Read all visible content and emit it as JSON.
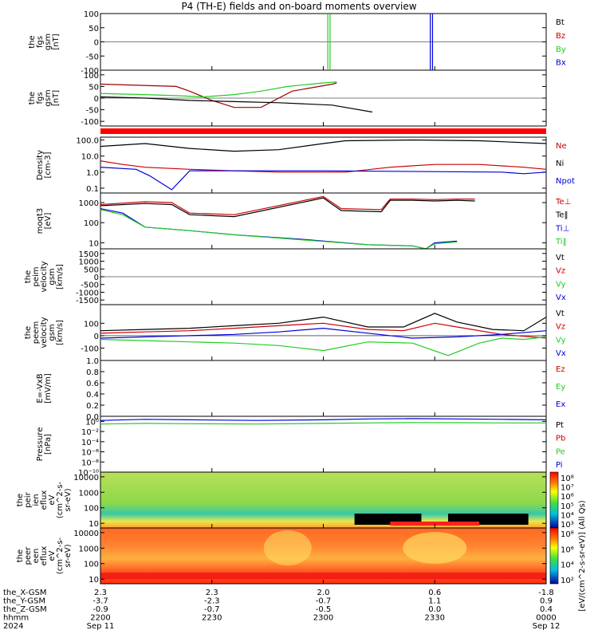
{
  "title": "P4 (TH-E) fields and on-board moments overview",
  "colors": {
    "black": "#000000",
    "red": "#cc0000",
    "green": "#22cc22",
    "blue": "#0000dd",
    "darkred": "#990000",
    "band_red": "#ff0000"
  },
  "chart_data": [
    {
      "type": "line",
      "ylabel": [
        "the",
        "fgs",
        "gsm",
        "[nT]"
      ],
      "ylim": [
        -100,
        100
      ],
      "yticks": [
        "100",
        "50",
        "0",
        "-50",
        "-100"
      ],
      "yvals": [
        100,
        50,
        0,
        -50,
        -100
      ],
      "legend": [
        {
          "name": "Bt",
          "color": "#000000"
        },
        {
          "name": "Bz",
          "color": "#cc0000"
        },
        {
          "name": "By",
          "color": "#22cc22"
        },
        {
          "name": "Bx",
          "color": "#0000dd"
        }
      ]
    },
    {
      "type": "line",
      "ylabel": [
        "the",
        "fgs",
        "gsm",
        "[nT]"
      ],
      "ylim": [
        -120,
        120
      ],
      "yticks": [
        "100",
        "50",
        "0",
        "-50",
        "-100"
      ],
      "yvals": [
        100,
        50,
        0,
        -50,
        -100
      ],
      "series": [
        {
          "name": "Bz",
          "color": "#990000",
          "x": [
            0,
            0.09,
            0.17,
            0.2,
            0.25,
            0.3,
            0.36,
            0.43,
            0.52,
            0.53
          ],
          "y": [
            60,
            55,
            50,
            30,
            -10,
            -40,
            -40,
            30,
            60,
            65
          ]
        },
        {
          "name": "By",
          "color": "#22cc22",
          "x": [
            0,
            0.1,
            0.18,
            0.23,
            0.3,
            0.36,
            0.42,
            0.5,
            0.53
          ],
          "y": [
            20,
            15,
            10,
            5,
            15,
            30,
            50,
            65,
            70
          ]
        },
        {
          "name": "Bt",
          "color": "#000000",
          "x": [
            0,
            0.1,
            0.2,
            0.3,
            0.4,
            0.46,
            0.52,
            0.61
          ],
          "y": [
            5,
            0,
            -10,
            -15,
            -20,
            -25,
            -30,
            -60
          ]
        }
      ]
    },
    {
      "type": "line",
      "ylabel": [
        "Density",
        "[cm-3]"
      ],
      "ylim": [
        0.05,
        150
      ],
      "yticks": [
        "100.0",
        "10.0",
        "1.0",
        "0.1"
      ],
      "yvals": [
        100,
        10,
        1,
        0.1
      ],
      "log": true,
      "legend": [
        {
          "name": "Ne",
          "color": "#cc0000"
        },
        {
          "name": "Ni",
          "color": "#000000"
        },
        {
          "name": "Npot",
          "color": "#0000dd"
        }
      ],
      "series": [
        {
          "name": "Ni",
          "color": "#000000",
          "x": [
            0,
            0.1,
            0.2,
            0.3,
            0.4,
            0.5,
            0.55,
            0.7,
            0.85,
            1.0
          ],
          "y": [
            40,
            60,
            30,
            20,
            25,
            60,
            90,
            100,
            90,
            60
          ]
        },
        {
          "name": "Ne",
          "color": "#cc0000",
          "x": [
            0,
            0.05,
            0.1,
            0.2,
            0.3,
            0.4,
            0.55,
            0.65,
            0.75,
            0.85,
            0.95,
            1.0
          ],
          "y": [
            5,
            3,
            2,
            1.5,
            1.2,
            1.0,
            1.0,
            2,
            3,
            3,
            2,
            1.5
          ]
        },
        {
          "name": "Npot",
          "color": "#0000dd",
          "x": [
            0,
            0.08,
            0.11,
            0.16,
            0.2,
            0.4,
            0.5,
            0.9,
            0.95,
            1.0
          ],
          "y": [
            2,
            1.5,
            0.6,
            0.08,
            1.2,
            1.2,
            1.2,
            1.0,
            0.8,
            1.0
          ]
        }
      ]
    },
    {
      "type": "line",
      "ylabel": [
        "moqt3",
        "[eV]"
      ],
      "ylim": [
        5,
        3000
      ],
      "yticks": [
        "1000",
        "100",
        "10"
      ],
      "yvals": [
        1000,
        100,
        10
      ],
      "log": true,
      "legend": [
        {
          "name": "Te⊥",
          "color": "#cc0000"
        },
        {
          "name": "Te‖",
          "color": "#000000"
        },
        {
          "name": "Ti⊥",
          "color": "#0000dd"
        },
        {
          "name": "Ti‖",
          "color": "#22cc22"
        }
      ],
      "series": [
        {
          "name": "Te⊥",
          "color": "#cc0000",
          "x": [
            0,
            0.1,
            0.16,
            0.2,
            0.3,
            0.5,
            0.54,
            0.63,
            0.65,
            0.7,
            0.75,
            0.8,
            0.84
          ],
          "y": [
            800,
            1100,
            1000,
            300,
            250,
            2000,
            500,
            450,
            1500,
            1500,
            1400,
            1500,
            1500
          ]
        },
        {
          "name": "Te‖",
          "color": "#000000",
          "x": [
            0,
            0.1,
            0.16,
            0.2,
            0.3,
            0.5,
            0.54,
            0.63,
            0.65,
            0.7,
            0.75,
            0.8,
            0.84
          ],
          "y": [
            700,
            900,
            800,
            250,
            200,
            1700,
            400,
            350,
            1300,
            1300,
            1200,
            1300,
            1200
          ]
        },
        {
          "name": "Ti⊥",
          "color": "#0000dd",
          "x": [
            0,
            0.05,
            0.1,
            0.2,
            0.3,
            0.45,
            0.6,
            0.7,
            0.73,
            0.75,
            0.8
          ],
          "y": [
            500,
            300,
            60,
            40,
            25,
            15,
            8,
            7,
            5,
            10,
            12
          ]
        },
        {
          "name": "Ti‖",
          "color": "#22cc22",
          "x": [
            0,
            0.05,
            0.1,
            0.2,
            0.3,
            0.45,
            0.6,
            0.7,
            0.73,
            0.75,
            0.8
          ],
          "y": [
            450,
            250,
            60,
            40,
            25,
            14,
            8,
            7,
            5,
            9,
            11
          ]
        }
      ]
    },
    {
      "type": "line",
      "ylabel": [
        "the",
        "peim",
        "velocity",
        "gsm",
        "[km/s]"
      ],
      "ylim": [
        -1800,
        1800
      ],
      "yticks": [
        "1500",
        "1000",
        "500",
        "0",
        "-500",
        "-1000",
        "-1500"
      ],
      "yvals": [
        1500,
        1000,
        500,
        0,
        -500,
        -1000,
        -1500
      ],
      "legend": [
        {
          "name": "Vt",
          "color": "#000000"
        },
        {
          "name": "Vz",
          "color": "#cc0000"
        },
        {
          "name": "Vy",
          "color": "#22cc22"
        },
        {
          "name": "Vx",
          "color": "#0000dd"
        }
      ]
    },
    {
      "type": "line",
      "ylabel": [
        "the",
        "peem",
        "velocity",
        "gsm",
        "[km/s]"
      ],
      "ylim": [
        -200,
        250
      ],
      "yticks": [
        "100",
        "0",
        "-100"
      ],
      "yvals": [
        100,
        0,
        -100
      ],
      "legend": [
        {
          "name": "Vt",
          "color": "#000000"
        },
        {
          "name": "Vz",
          "color": "#cc0000"
        },
        {
          "name": "Vy",
          "color": "#22cc22"
        },
        {
          "name": "Vx",
          "color": "#0000dd"
        }
      ],
      "series": [
        {
          "name": "Vt",
          "color": "#000000",
          "x": [
            0,
            0.1,
            0.2,
            0.3,
            0.4,
            0.5,
            0.6,
            0.68,
            0.75,
            0.8,
            0.88,
            0.95,
            1.0
          ],
          "y": [
            40,
            50,
            60,
            80,
            100,
            150,
            70,
            70,
            180,
            110,
            50,
            40,
            150
          ]
        },
        {
          "name": "Vz",
          "color": "#cc0000",
          "x": [
            0,
            0.1,
            0.2,
            0.3,
            0.4,
            0.5,
            0.6,
            0.68,
            0.75,
            0.8,
            0.9,
            1.0
          ],
          "y": [
            20,
            30,
            40,
            60,
            80,
            100,
            50,
            40,
            100,
            70,
            10,
            -20
          ]
        },
        {
          "name": "Vx",
          "color": "#0000dd",
          "x": [
            0,
            0.1,
            0.2,
            0.3,
            0.4,
            0.5,
            0.6,
            0.7,
            0.8,
            0.9,
            1.0
          ],
          "y": [
            -20,
            -10,
            0,
            10,
            30,
            60,
            20,
            -20,
            -10,
            10,
            40
          ]
        },
        {
          "name": "Vy",
          "color": "#22cc22",
          "x": [
            0,
            0.1,
            0.2,
            0.3,
            0.4,
            0.5,
            0.6,
            0.7,
            0.78,
            0.85,
            0.9,
            0.95,
            1.0
          ],
          "y": [
            -30,
            -40,
            -50,
            -60,
            -80,
            -120,
            -50,
            -60,
            -160,
            -60,
            -20,
            -30,
            -10
          ]
        }
      ]
    },
    {
      "type": "line",
      "ylabel": [
        "E=-VxB",
        "[mV/m]"
      ],
      "ylim": [
        0,
        1.0
      ],
      "yticks": [
        "1.0",
        "0.8",
        "0.6",
        "0.4",
        "0.2",
        "0.0"
      ],
      "yvals": [
        1.0,
        0.8,
        0.6,
        0.4,
        0.2,
        0.0
      ],
      "legend": [
        {
          "name": "Ez",
          "color": "#cc0000"
        },
        {
          "name": "Ey",
          "color": "#22cc22"
        },
        {
          "name": "Ex",
          "color": "#0000dd"
        }
      ]
    },
    {
      "type": "line",
      "ylabel": [
        "Pressure",
        "[nPa]"
      ],
      "ylim": [
        1e-10,
        10
      ],
      "yticks": [
        "10⁰",
        "10⁻²",
        "10⁻⁴",
        "10⁻⁶",
        "10⁻⁸",
        "10⁻¹⁰"
      ],
      "yvals": [
        1,
        0.01,
        0.0001,
        1e-06,
        1e-08,
        1e-10
      ],
      "log": true,
      "legend": [
        {
          "name": "Pt",
          "color": "#000000"
        },
        {
          "name": "Pb",
          "color": "#cc0000"
        },
        {
          "name": "Pe",
          "color": "#22cc22"
        },
        {
          "name": "Pi",
          "color": "#0000dd"
        }
      ],
      "series": [
        {
          "name": "Pi",
          "color": "#0000dd",
          "x": [
            0,
            0.1,
            0.2,
            0.35,
            0.5,
            0.6,
            0.7,
            0.8,
            0.9,
            1.0
          ],
          "y": [
            1.5,
            2.5,
            2,
            1.5,
            2,
            3,
            3.5,
            3,
            2.5,
            2
          ]
        },
        {
          "name": "Pe",
          "color": "#22cc22",
          "x": [
            0,
            0.1,
            0.2,
            0.35,
            0.5,
            0.6,
            0.7,
            0.8,
            0.9,
            1.0
          ],
          "y": [
            0.3,
            0.4,
            0.35,
            0.3,
            0.4,
            0.5,
            0.6,
            0.55,
            0.5,
            0.5
          ]
        }
      ]
    },
    {
      "type": "heatmap",
      "ylabel": [
        "the",
        "peir",
        "ien",
        "eflux",
        "eV",
        "(cm^2-s-",
        "sr-eV)"
      ],
      "yticks": [
        "10000",
        "1000",
        "100",
        "10"
      ],
      "yvals": [
        10000,
        1000,
        100,
        10
      ],
      "ylim": [
        5,
        20000
      ],
      "log": true,
      "colorbar_ticks": [
        "10⁸",
        "10⁷",
        "10⁶",
        "10⁵",
        "10⁴",
        "10³"
      ]
    },
    {
      "type": "heatmap",
      "ylabel": [
        "the",
        "peer",
        "een",
        "eflux",
        "eV",
        "(cm^2-s-",
        "sr-eV)"
      ],
      "yticks": [
        "10000",
        "1000",
        "100",
        "10"
      ],
      "yvals": [
        10000,
        1000,
        100,
        10
      ],
      "ylim": [
        5,
        20000
      ],
      "log": true,
      "colorbar_ticks": [
        "10⁸",
        "10⁶",
        "10⁴",
        "10²"
      ]
    }
  ],
  "colorbar_label": "[eV/(cm^2-s-sr-eV)] (All Qs)",
  "xaxis": {
    "row_labels": [
      "the_X-GSM",
      "the_Y-GSM",
      "the_Z-GSM",
      "hhmm",
      "2024"
    ],
    "columns": [
      {
        "x": 0,
        "vals": [
          "2.3",
          "-3.7",
          "-0.9",
          "2200",
          "Sep 11"
        ]
      },
      {
        "x": 0.25,
        "vals": [
          "2.3",
          "-2.3",
          "-0.7",
          "2230",
          ""
        ]
      },
      {
        "x": 0.5,
        "vals": [
          "2.0",
          "-0.7",
          "-0.5",
          "2300",
          ""
        ]
      },
      {
        "x": 0.75,
        "vals": [
          "0.6",
          "1.1",
          "0.0",
          "2330",
          ""
        ]
      },
      {
        "x": 1.0,
        "vals": [
          "-1.8",
          "0.9",
          "0.4",
          "0000",
          "Sep 12"
        ]
      }
    ]
  }
}
